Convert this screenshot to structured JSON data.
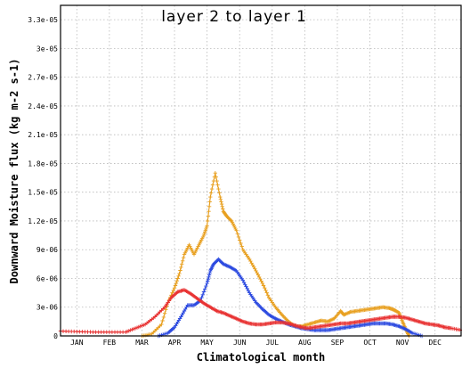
{
  "chart_data": {
    "type": "line",
    "title": "layer 2 to layer 1",
    "xlabel": "Climatological month",
    "ylabel": "Downward Moisture flux (kg m-2 s-1)",
    "categories": [
      "JAN",
      "FEB",
      "MAR",
      "APR",
      "MAY",
      "JUN",
      "JUL",
      "AUG",
      "SEP",
      "OCT",
      "NOV",
      "DEC"
    ],
    "xlim": [
      0.5,
      12.8
    ],
    "ylim": [
      0,
      3.45e-05
    ],
    "yticks": [
      0,
      3e-06,
      6e-06,
      9e-06,
      1.2e-05,
      1.5e-05,
      1.8e-05,
      2.1e-05,
      2.4e-05,
      2.7e-05,
      3e-05,
      3.3e-05
    ],
    "ytick_labels": [
      "0",
      "3e-06",
      "6e-06",
      "9e-06",
      "1.2e-05",
      "1.5e-05",
      "1.8e-05",
      "2.1e-05",
      "2.4e-05",
      "2.7e-05",
      "3e-05",
      "3.3e-05"
    ],
    "grid": true,
    "series": [
      {
        "color": "#e8a020",
        "x": [
          3.0,
          3.3,
          3.6,
          3.8,
          4.0,
          4.15,
          4.3,
          4.45,
          4.6,
          4.75,
          4.9,
          5.0,
          5.1,
          5.25,
          5.4,
          5.5,
          5.6,
          5.75,
          5.9,
          6.1,
          6.3,
          6.5,
          6.7,
          6.9,
          7.1,
          7.3,
          7.5,
          7.7,
          7.9,
          8.1,
          8.3,
          8.5,
          8.7,
          8.9,
          9.1,
          9.2,
          9.4,
          9.6,
          9.8,
          10.0,
          10.2,
          10.4,
          10.6,
          10.75,
          10.9,
          11.0,
          11.1,
          11.2
        ],
        "y": [
          0,
          2e-07,
          1.2e-06,
          3.5e-06,
          5e-06,
          6.5e-06,
          8.5e-06,
          9.5e-06,
          8.5e-06,
          9.5e-06,
          1.05e-05,
          1.15e-05,
          1.45e-05,
          1.7e-05,
          1.45e-05,
          1.3e-05,
          1.25e-05,
          1.2e-05,
          1.1e-05,
          9e-06,
          8e-06,
          6.8e-06,
          5.5e-06,
          4e-06,
          3e-06,
          2.2e-06,
          1.5e-06,
          1e-06,
          1e-06,
          1.2e-06,
          1.4e-06,
          1.6e-06,
          1.5e-06,
          1.8e-06,
          2.6e-06,
          2.2e-06,
          2.5e-06,
          2.6e-06,
          2.7e-06,
          2.8e-06,
          2.9e-06,
          3e-06,
          2.9e-06,
          2.7e-06,
          2.4e-06,
          1.5e-06,
          7e-07,
          0
        ]
      },
      {
        "color": "#2c4ae0",
        "x": [
          3.5,
          3.8,
          4.0,
          4.2,
          4.4,
          4.6,
          4.8,
          5.0,
          5.1,
          5.2,
          5.35,
          5.5,
          5.7,
          5.9,
          6.1,
          6.3,
          6.5,
          6.7,
          6.9,
          7.1,
          7.3,
          7.5,
          7.7,
          7.9,
          8.1,
          8.3,
          8.5,
          8.7,
          8.9,
          9.1,
          9.3,
          9.5,
          9.7,
          9.9,
          10.1,
          10.3,
          10.5,
          10.7,
          10.9,
          11.1,
          11.3,
          11.6
        ],
        "y": [
          0,
          3e-07,
          9e-07,
          2e-06,
          3.2e-06,
          3.2e-06,
          3.7e-06,
          5.5e-06,
          6.8e-06,
          7.5e-06,
          8e-06,
          7.5e-06,
          7.2e-06,
          6.8e-06,
          5.8e-06,
          4.5e-06,
          3.5e-06,
          2.8e-06,
          2.2e-06,
          1.8e-06,
          1.5e-06,
          1.2e-06,
          1e-06,
          8e-07,
          7e-07,
          6e-07,
          6e-07,
          6e-07,
          7e-07,
          8e-07,
          9e-07,
          1e-06,
          1.1e-06,
          1.2e-06,
          1.3e-06,
          1.3e-06,
          1.3e-06,
          1.2e-06,
          1e-06,
          7e-07,
          3e-07,
          0
        ]
      },
      {
        "color": "#e83232",
        "x": [
          0.5,
          1.0,
          1.5,
          2.0,
          2.5,
          2.8,
          3.1,
          3.4,
          3.7,
          3.9,
          4.1,
          4.3,
          4.5,
          4.7,
          4.9,
          5.1,
          5.3,
          5.5,
          5.7,
          5.9,
          6.1,
          6.3,
          6.5,
          6.7,
          6.9,
          7.1,
          7.3,
          7.5,
          7.7,
          7.9,
          8.1,
          8.3,
          8.5,
          8.7,
          8.9,
          9.1,
          9.3,
          9.5,
          9.7,
          9.9,
          10.1,
          10.3,
          10.5,
          10.7,
          10.9,
          11.1,
          11.3,
          11.5,
          11.7,
          11.9,
          12.1,
          12.3,
          12.5,
          12.8
        ],
        "y": [
          5e-07,
          4.5e-07,
          4e-07,
          4e-07,
          4e-07,
          8e-07,
          1.2e-06,
          2e-06,
          3e-06,
          4e-06,
          4.6e-06,
          4.8e-06,
          4.4e-06,
          3.9e-06,
          3.4e-06,
          3e-06,
          2.6e-06,
          2.4e-06,
          2.1e-06,
          1.8e-06,
          1.5e-06,
          1.3e-06,
          1.2e-06,
          1.2e-06,
          1.3e-06,
          1.4e-06,
          1.4e-06,
          1.3e-06,
          1.1e-06,
          9e-07,
          8e-07,
          9e-07,
          1e-06,
          1.1e-06,
          1.2e-06,
          1.3e-06,
          1.3e-06,
          1.4e-06,
          1.5e-06,
          1.6e-06,
          1.7e-06,
          1.8e-06,
          1.9e-06,
          2e-06,
          2e-06,
          1.9e-06,
          1.7e-06,
          1.5e-06,
          1.3e-06,
          1.2e-06,
          1.1e-06,
          9e-07,
          8e-07,
          6e-07
        ]
      }
    ]
  }
}
